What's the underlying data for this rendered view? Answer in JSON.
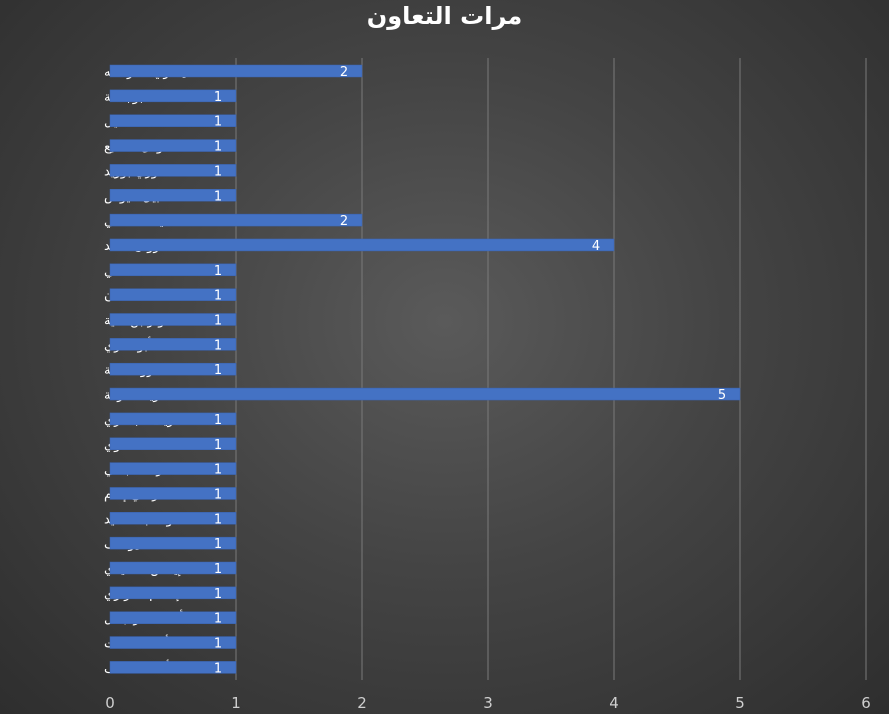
{
  "chart_data": {
    "type": "bar",
    "orientation": "horizontal",
    "title": "مرات التعاون",
    "categories": [
      "يسري نصر الله",
      "هند بوجمعة",
      "هالة خليل",
      "نوفل الطابع",
      "نوري بوزيد",
      "نبيل عيوش",
      "مفيدة التلاتلي",
      "مروان حامد",
      "محمد علي",
      "محمد خان",
      "كوثر بن هنية",
      "كاملة أبو ذكري",
      "عمرو سلامة",
      "شريف عرفة",
      "شريف البنداري",
      "سعد هنداوي",
      "رضا الباهي",
      "رامي إمام",
      "داود عبد السيد",
      "خالد يوسف",
      "إيناس الدغيدي",
      "إسلام العزازي",
      "أحمد نادر جلال",
      "أحمد مدحت",
      "أحمد عاطف"
    ],
    "values": [
      2,
      1,
      1,
      1,
      1,
      1,
      2,
      4,
      1,
      1,
      1,
      1,
      1,
      5,
      1,
      1,
      1,
      1,
      1,
      1,
      1,
      1,
      1,
      1,
      1
    ],
    "xlim": [
      0,
      6
    ],
    "xticks": [
      0,
      1,
      2,
      3,
      4,
      5,
      6
    ],
    "grid": "vertical",
    "data_labels": true,
    "colors": {
      "bar": "#4472c4",
      "grid": "#7a7a7a",
      "text": "#ffffff",
      "tick_text": "#cfcfcf"
    }
  }
}
